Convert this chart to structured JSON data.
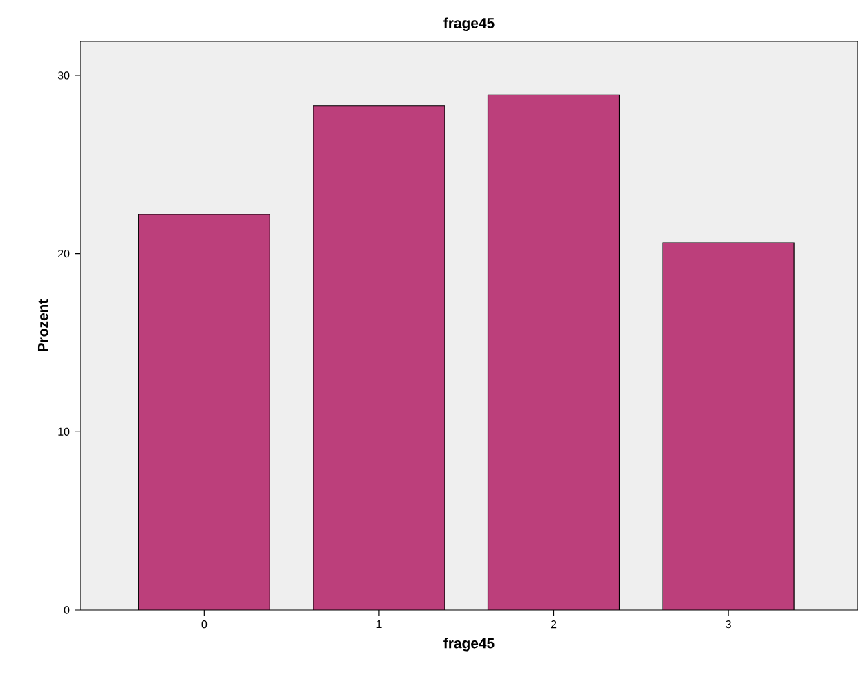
{
  "chart_data": {
    "type": "bar",
    "title": "frage45",
    "xlabel": "frage45",
    "ylabel": "Prozent",
    "categories": [
      "0",
      "1",
      "2",
      "3"
    ],
    "values": [
      22.2,
      28.3,
      28.9,
      20.6
    ],
    "color": "#bc3f7b",
    "ylim": [
      0,
      31.9
    ],
    "yticks": [
      0,
      10,
      20,
      30
    ],
    "grid": false
  }
}
